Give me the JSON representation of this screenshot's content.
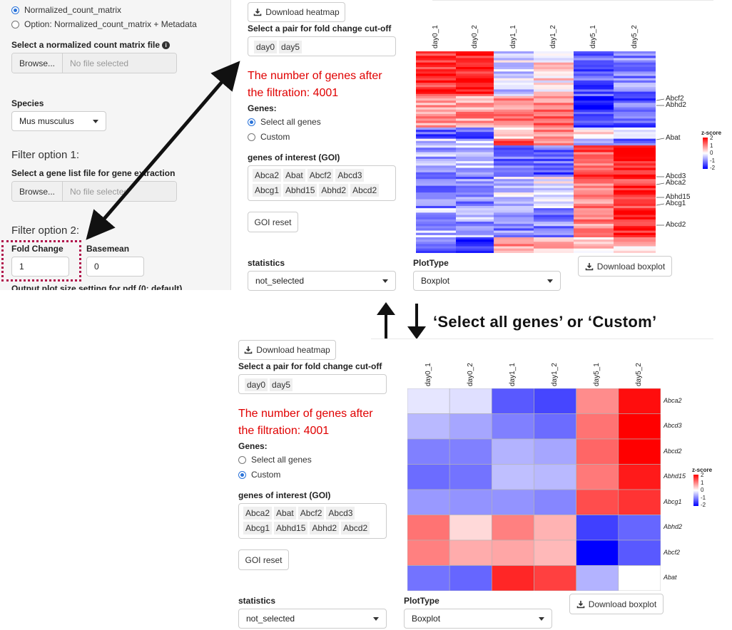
{
  "sidebar": {
    "radio_normalized": "Normalized_count_matrix",
    "radio_option": "Option: Normalized_count_matrix + Metadata",
    "file_label": "Select a normalized count matrix file",
    "browse_label": "Browse...",
    "no_file": "No file selected",
    "species_label": "Species",
    "species_value": "Mus musculus",
    "filter1_title": "Filter option 1:",
    "gene_list_label": "Select a gene list file for gene extraction",
    "filter2_title": "Filter option 2:",
    "fold_change_label": "Fold Change",
    "fold_change_value": "1",
    "basemean_label": "Basemean",
    "basemean_value": "0",
    "cutoff_partial": "Output plot size setting for pdf (0: default)"
  },
  "panel": {
    "download_heatmap": "Download heatmap",
    "pair_label": "Select a pair for fold change cut-off",
    "pair_tags": [
      "day0",
      "day5"
    ],
    "genes_count_text": "The number of genes after the filtration: 4001",
    "genes_label": "Genes:",
    "select_all": "Select all genes",
    "custom": "Custom",
    "goi_label": "genes of interest (GOI)",
    "goi_tags": [
      "Abca2",
      "Abat",
      "Abcf2",
      "Abcd3",
      "Abcg1",
      "Abhd15",
      "Abhd2",
      "Abcd2"
    ],
    "goi_reset": "GOI reset",
    "statistics_label": "statistics",
    "statistics_value": "not_selected",
    "plottype_label": "PlotType",
    "plottype_value": "Boxplot",
    "download_boxplot": "Download boxplot"
  },
  "caption": "‘Select all genes’ or ‘Custom’",
  "heatmap_top": {
    "columns": [
      "day0_1",
      "day0_2",
      "day1_1",
      "day1_2",
      "day5_1",
      "day5_2"
    ],
    "annotations": [
      "Abcf2",
      "Abhd2",
      "Abat",
      "Abcd3",
      "Abca2",
      "Abhd15",
      "Abcg1",
      "Abcd2"
    ],
    "legend_title": "z-score",
    "legend_ticks": [
      "2",
      "1",
      "0",
      "-1",
      "-2"
    ]
  },
  "heatmap_bottom": {
    "columns": [
      "day0_1",
      "day0_2",
      "day1_1",
      "day1_2",
      "day5_1",
      "day5_2"
    ],
    "rows": [
      "Abca2",
      "Abcd3",
      "Abcd2",
      "Abhd15",
      "Abcg1",
      "Abhd2",
      "Abcf2",
      "Abat"
    ],
    "legend_title": "z-score",
    "legend_ticks": [
      "2",
      "1",
      "0",
      "-1",
      "-2"
    ],
    "values": [
      [
        -0.2,
        -0.25,
        -1.3,
        -1.45,
        0.9,
        1.9
      ],
      [
        -0.55,
        -0.7,
        -1.0,
        -1.15,
        1.1,
        2.0
      ],
      [
        -1.0,
        -1.0,
        -0.6,
        -0.7,
        1.2,
        2.0
      ],
      [
        -1.15,
        -1.1,
        -0.5,
        -0.55,
        1.05,
        1.8
      ],
      [
        -0.8,
        -0.85,
        -0.85,
        -0.95,
        1.4,
        1.6
      ],
      [
        1.1,
        0.3,
        1.0,
        0.6,
        -1.5,
        -1.2
      ],
      [
        1.0,
        0.65,
        0.7,
        0.55,
        -2.0,
        -1.3
      ],
      [
        -1.1,
        -1.2,
        1.7,
        1.5,
        -0.6,
        0.0
      ]
    ]
  }
}
